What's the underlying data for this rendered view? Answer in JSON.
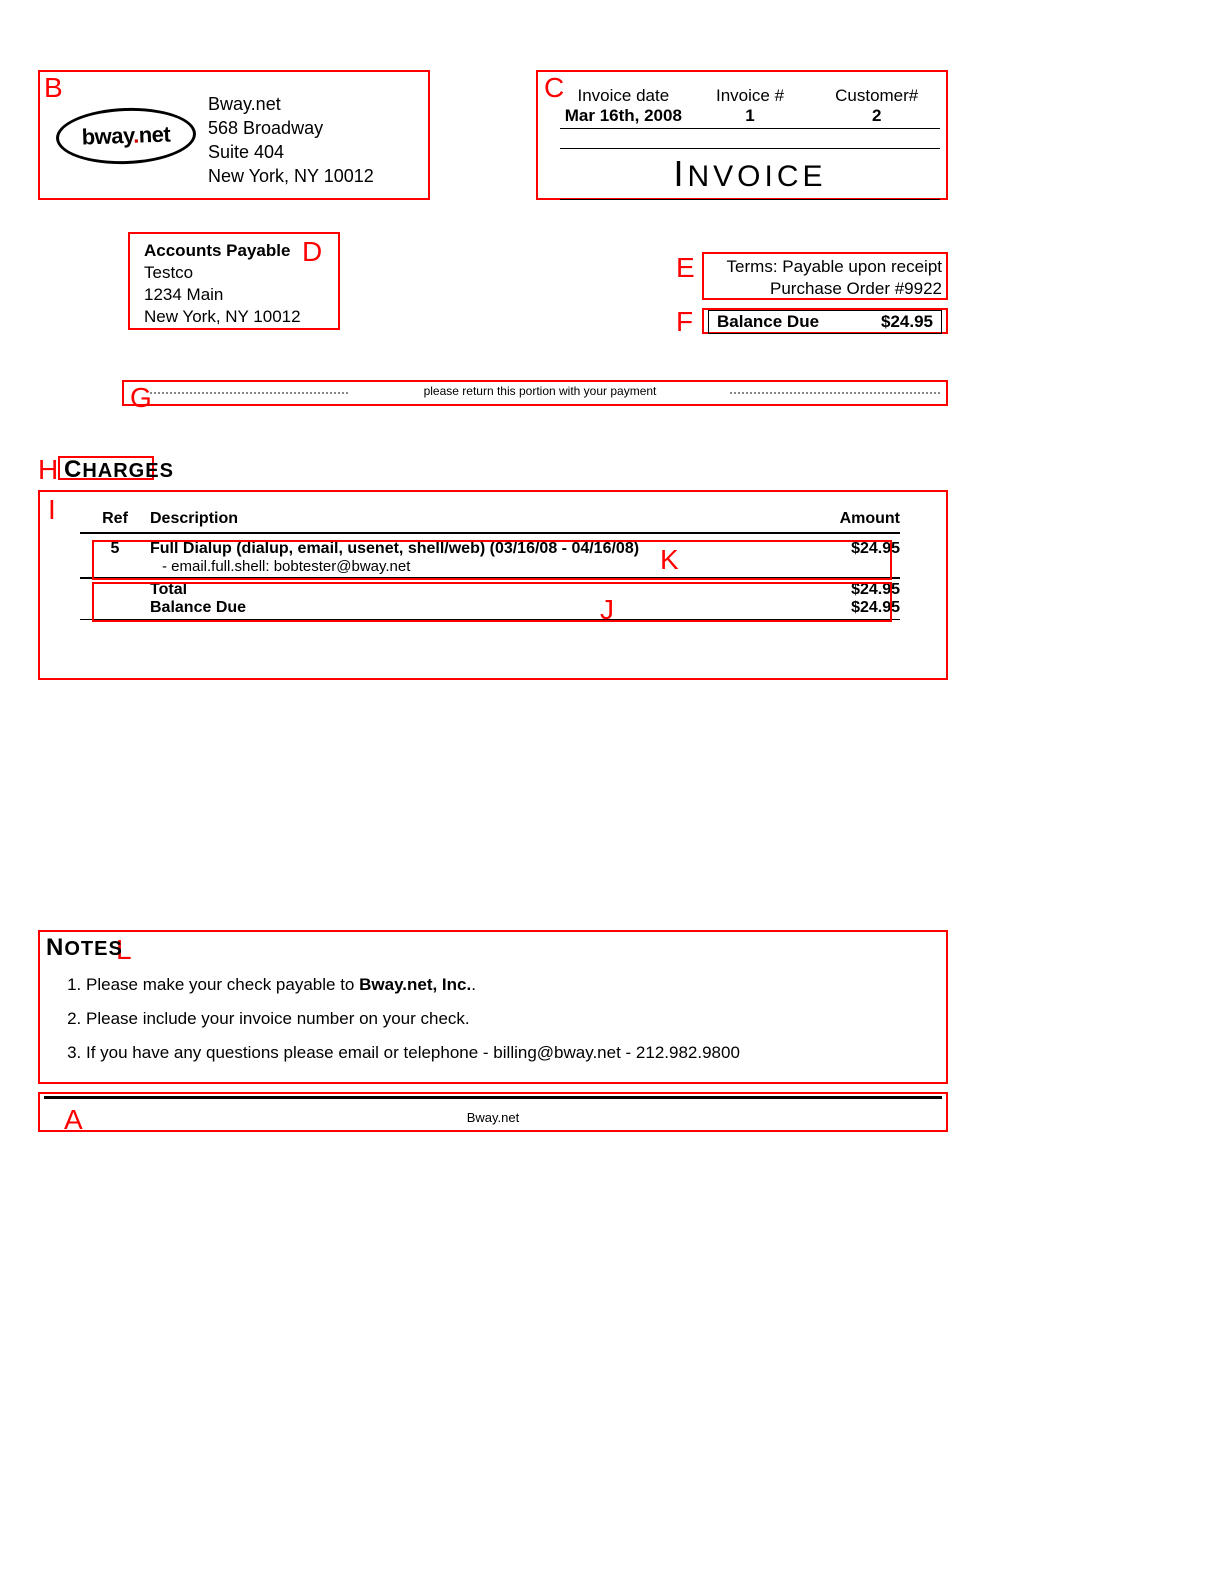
{
  "annotations": {
    "color": "#ff0000",
    "letters": [
      "A",
      "B",
      "C",
      "D",
      "E",
      "F",
      "G",
      "H",
      "I",
      "J",
      "K",
      "L"
    ]
  },
  "company": {
    "name": "Bway.net",
    "addr1": "568 Broadway",
    "addr2": "Suite 404",
    "city": "New York, NY  10012",
    "logo_text_main": "bway",
    "logo_text_dot": ".",
    "logo_text_suffix": "net"
  },
  "invoice_meta": {
    "date_label": "Invoice date",
    "date_value": "Mar 16th, 2008",
    "num_label": "Invoice #",
    "num_value": "1",
    "cust_label": "Customer#",
    "cust_value": "2",
    "title": "Invoice"
  },
  "bill_to": {
    "attn": "Accounts Payable",
    "company": "Testco",
    "addr": "1234 Main",
    "city": "New York, NY  10012"
  },
  "terms": {
    "line1": "Terms: Payable upon receipt",
    "line2": "Purchase Order #9922"
  },
  "balance_due_box": {
    "label": "Balance Due",
    "amount": "$24.95"
  },
  "tear": {
    "text": "please return this portion with your payment"
  },
  "charges": {
    "heading": "Charges",
    "columns": {
      "ref": "Ref",
      "desc": "Description",
      "amount": "Amount"
    },
    "rows": [
      {
        "ref": "5",
        "desc_main": "Full Dialup (dialup, email, usenet, shell/web) (03/16/08 - 04/16/08)",
        "desc_sub": "- email.full.shell: bobtester@bway.net",
        "amount": "$24.95"
      }
    ],
    "totals": [
      {
        "label": "Total",
        "amount": "$24.95"
      },
      {
        "label": "Balance Due",
        "amount": "$24.95"
      }
    ]
  },
  "notes": {
    "heading": "Notes",
    "items": [
      {
        "pre": "Please make your check payable to ",
        "bold": "Bway.net, Inc.",
        "post": "."
      },
      {
        "pre": "Please include your invoice number on your check.",
        "bold": "",
        "post": ""
      },
      {
        "pre": "If you have any questions please email or telephone - billing@bway.net - 212.982.9800",
        "bold": "",
        "post": ""
      }
    ]
  },
  "footer": {
    "text": "Bway.net"
  }
}
